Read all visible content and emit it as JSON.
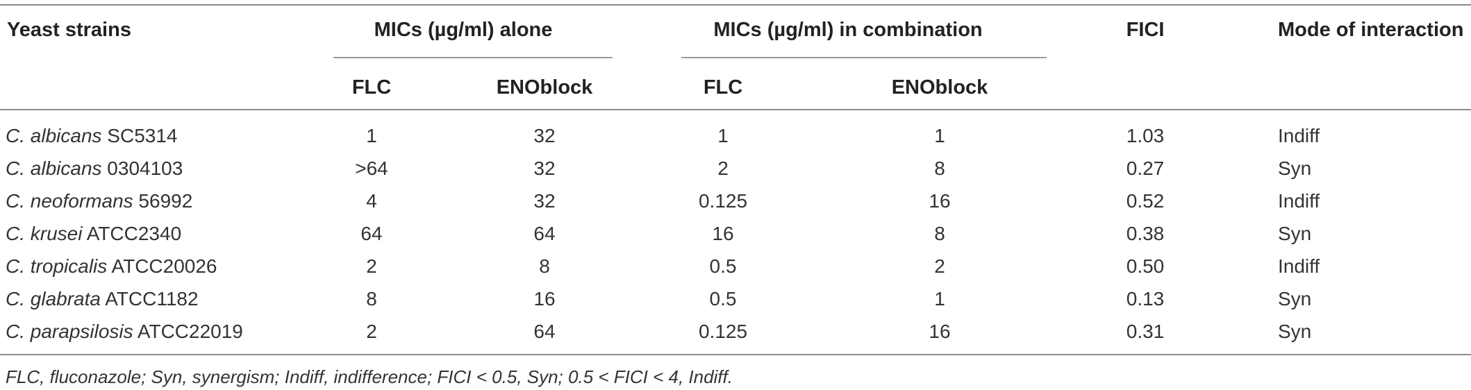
{
  "table": {
    "headers": {
      "strain": "Yeast strains",
      "alone": "MICs (µg/ml) alone",
      "combination": "MICs (µg/ml) in combination",
      "fici": "FICI",
      "mode": "Mode of interaction",
      "flc_alone": "FLC",
      "eno_alone": "ENOblock",
      "flc_comb": "FLC",
      "eno_comb": "ENOblock"
    },
    "rows": [
      {
        "species": "C. albicans",
        "strain": " SC5314",
        "flc_alone": "1",
        "eno_alone": "32",
        "flc_comb": "1",
        "eno_comb": "1",
        "fici": "1.03",
        "mode": "Indiff"
      },
      {
        "species": "C. albicans",
        "strain": " 0304103",
        "flc_alone": ">64",
        "eno_alone": "32",
        "flc_comb": "2",
        "eno_comb": "8",
        "fici": "0.27",
        "mode": "Syn"
      },
      {
        "species": "C. neoformans",
        "strain": " 56992",
        "flc_alone": "4",
        "eno_alone": "32",
        "flc_comb": "0.125",
        "eno_comb": "16",
        "fici": "0.52",
        "mode": "Indiff"
      },
      {
        "species": "C. krusei",
        "strain": " ATCC2340",
        "flc_alone": "64",
        "eno_alone": "64",
        "flc_comb": "16",
        "eno_comb": "8",
        "fici": "0.38",
        "mode": "Syn"
      },
      {
        "species": "C. tropicalis",
        "strain": " ATCC20026",
        "flc_alone": "2",
        "eno_alone": "8",
        "flc_comb": "0.5",
        "eno_comb": "2",
        "fici": "0.50",
        "mode": "Indiff"
      },
      {
        "species": "C. glabrata",
        "strain": " ATCC1182",
        "flc_alone": "8",
        "eno_alone": "16",
        "flc_comb": "0.5",
        "eno_comb": "1",
        "fici": "0.13",
        "mode": "Syn"
      },
      {
        "species": "C. parapsilosis",
        "strain": " ATCC22019",
        "flc_alone": "2",
        "eno_alone": "64",
        "flc_comb": "0.125",
        "eno_comb": "16",
        "fici": "0.31",
        "mode": "Syn"
      }
    ],
    "footnote": "FLC, fluconazole; Syn, synergism; Indiff, indifference; FICI < 0.5, Syn; 0.5 < FICI < 4, Indiff."
  }
}
